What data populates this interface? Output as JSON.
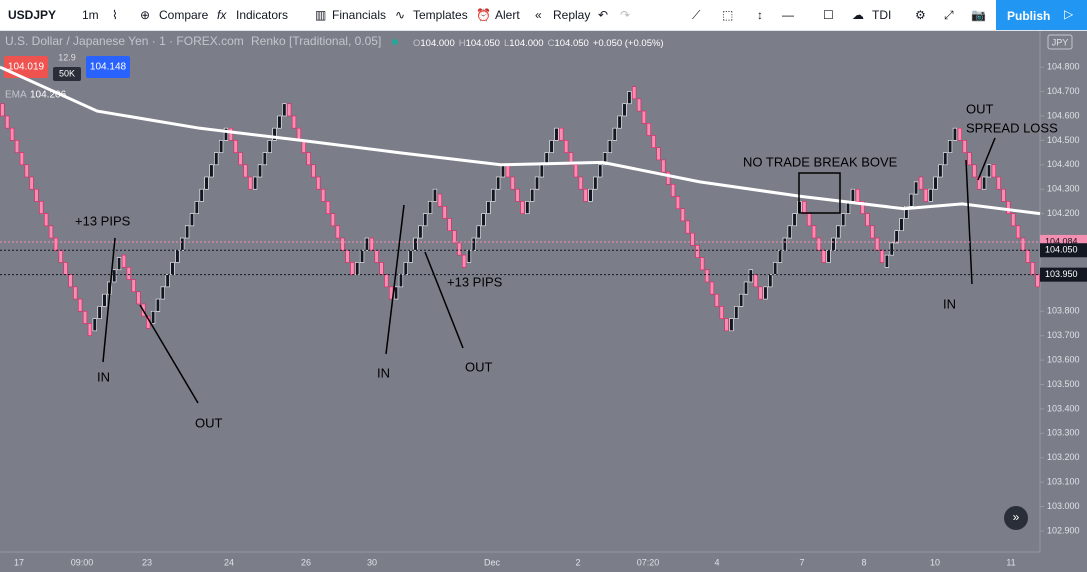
{
  "toolbar": {
    "symbol": "USDJPY",
    "interval": "1m",
    "compare": "Compare",
    "indicators": "Indicators",
    "financials": "Financials",
    "templates": "Templates",
    "alert": "Alert",
    "replay": "Replay",
    "template_name": "TDI",
    "publish": "Publish"
  },
  "legend": {
    "title": "U.S. Dollar / Japanese Yen · 1 · FOREX.com",
    "chart_style": "Renko [Traditional, 0.05]",
    "ohlc": [
      {
        "key": "O",
        "value": "104.000"
      },
      {
        "key": "H",
        "value": "104.050"
      },
      {
        "key": "L",
        "value": "104.000"
      },
      {
        "key": "C",
        "value": "104.050"
      }
    ],
    "change": "+0.050 (+0.05%)",
    "sell_price": "104.019",
    "spread": "12.9",
    "volume": "50K",
    "buy_price": "104.148",
    "ema_name": "EMA",
    "ema_value": "104.206"
  },
  "chart_data": {
    "type": "renko",
    "brick_size": 0.05,
    "up_color": "#131722",
    "down_color": "#f48fb1",
    "pivots": [
      104.65,
      103.72,
      104.03,
      103.75,
      104.55,
      104.3,
      104.65,
      103.95,
      104.1,
      103.85,
      104.28,
      104.0,
      104.4,
      104.2,
      104.55,
      104.25,
      104.72,
      103.72,
      103.95,
      103.85,
      104.25,
      104.0,
      104.3,
      103.98,
      104.35,
      104.25,
      104.55,
      104.3,
      104.4,
      103.88
    ],
    "ema": {
      "x": [
        0,
        20,
        41,
        62,
        82,
        103,
        124,
        144,
        165,
        186,
        198,
        214
      ],
      "values": [
        104.8,
        104.62,
        104.55,
        104.5,
        104.45,
        104.4,
        104.41,
        104.33,
        104.27,
        104.22,
        104.24,
        104.2
      ],
      "color": "#ffffff"
    },
    "ylim": [
      102.814,
      104.948
    ],
    "yticks": [
      {
        "value": 104.8,
        "label": "104.800"
      },
      {
        "value": 104.7,
        "label": "104.700"
      },
      {
        "value": 104.6,
        "label": "104.600"
      },
      {
        "value": 104.5,
        "label": "104.500"
      },
      {
        "value": 104.4,
        "label": "104.400"
      },
      {
        "value": 104.3,
        "label": "104.300"
      },
      {
        "value": 104.2,
        "label": "104.200"
      },
      {
        "value": 103.8,
        "label": "103.800"
      },
      {
        "value": 103.7,
        "label": "103.700"
      },
      {
        "value": 103.6,
        "label": "103.600"
      },
      {
        "value": 103.5,
        "label": "103.500"
      },
      {
        "value": 103.4,
        "label": "103.400"
      },
      {
        "value": 103.3,
        "label": "103.300"
      },
      {
        "value": 103.2,
        "label": "103.200"
      },
      {
        "value": 103.1,
        "label": "103.100"
      },
      {
        "value": 103.0,
        "label": "103.000"
      },
      {
        "value": 102.9,
        "label": "102.900"
      }
    ],
    "price_tags": [
      {
        "value": 104.084,
        "label": "104.084",
        "color": "#f48fb1"
      },
      {
        "value": 104.05,
        "label": "104.050",
        "color": "#131722"
      },
      {
        "value": 103.95,
        "label": "103.950",
        "color": "#131722"
      }
    ],
    "currency": "JPY",
    "time_labels": [
      "17",
      "09:00",
      "23",
      "24",
      "26",
      "30",
      "Dec",
      "2",
      "07:20",
      "4",
      "7",
      "8",
      "10",
      "11"
    ]
  },
  "annotations": [
    "+13 PIPS",
    "IN",
    "OUT",
    "IN",
    "OUT",
    "+13 PIPS",
    "NO TRADE BREAK BOVE",
    "IN",
    "OUT",
    "SPREAD LOSS"
  ]
}
